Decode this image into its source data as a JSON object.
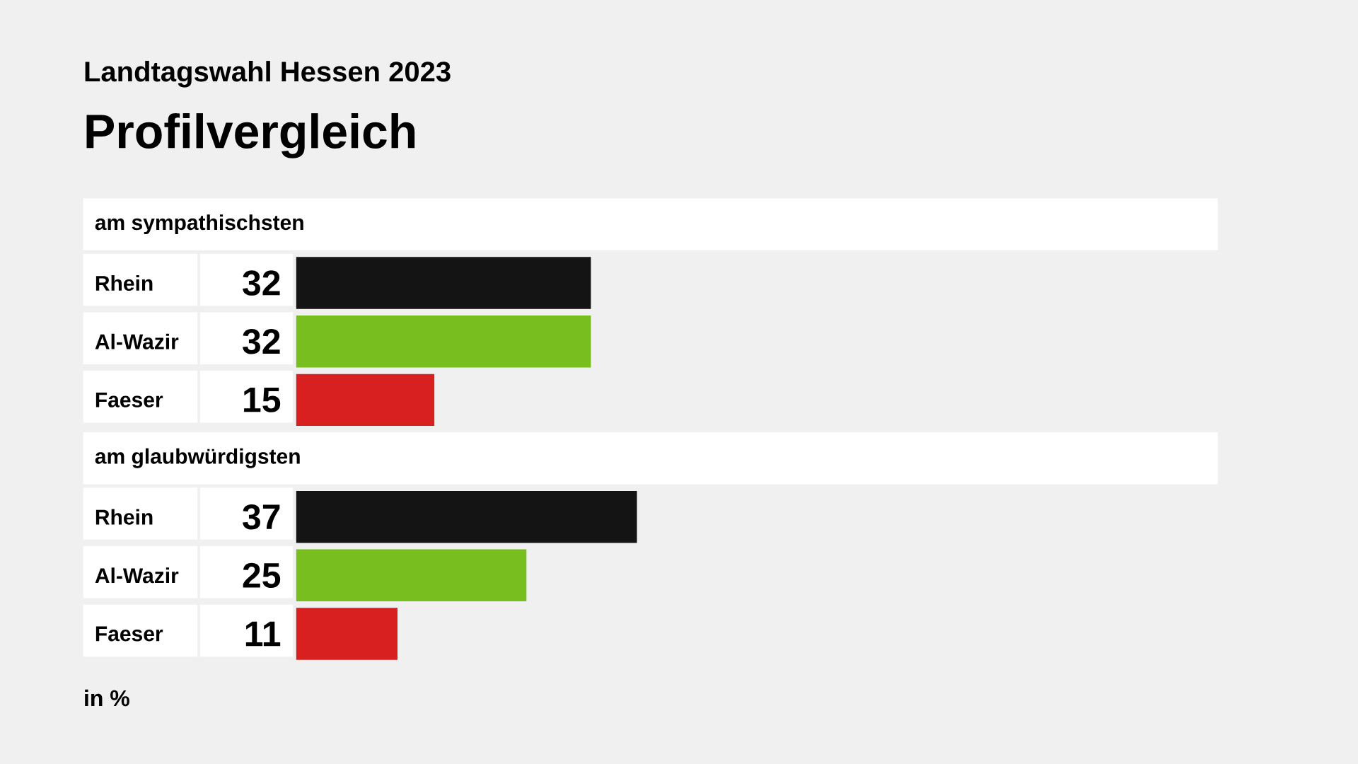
{
  "chart_data": [
    {
      "type": "bar",
      "orientation": "horizontal",
      "title": "am sympathischsten",
      "annotations": [
        "Landtagswahl Hessen 2023",
        "Profilvergleich"
      ],
      "categories": [
        "Rhein",
        "Al-Wazir",
        "Faeser"
      ],
      "values": [
        32,
        32,
        15
      ],
      "colors": [
        "#141414",
        "#78be1e",
        "#d7201f"
      ],
      "data_labels": true,
      "tick_labels": "y"
    },
    {
      "type": "bar",
      "orientation": "horizontal",
      "title": "am glaubwürdigsten",
      "annotations": [
        "in %"
      ],
      "categories": [
        "Rhein",
        "Al-Wazir",
        "Faeser"
      ],
      "values": [
        37,
        25,
        11
      ],
      "colors": [
        "#141414",
        "#78be1e",
        "#d7201f"
      ],
      "data_labels": true,
      "tick_labels": "y"
    }
  ]
}
